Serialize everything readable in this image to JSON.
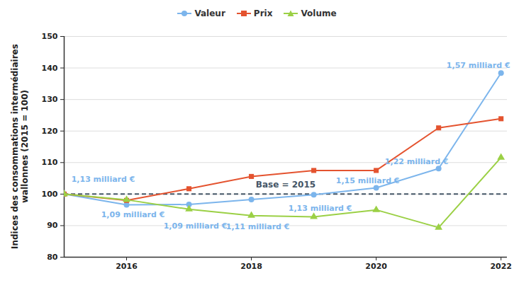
{
  "chart_data": {
    "type": "line",
    "x": [
      2015,
      2016,
      2017,
      2018,
      2019,
      2020,
      2021,
      2022
    ],
    "xlim": [
      2015,
      2022.1
    ],
    "xticks": [
      2016,
      2018,
      2020,
      2022
    ],
    "ylim": [
      80,
      150
    ],
    "yticks": [
      80,
      90,
      100,
      110,
      120,
      130,
      140,
      150
    ],
    "y_label": "Indices des consommations intermédiaires wallonnes (2015 = 100)",
    "grid": true,
    "legend": "top",
    "series": [
      {
        "name": "Valeur",
        "color": "#7cb5ec",
        "marker": "circle",
        "values": [
          100,
          96.6,
          96.7,
          98.3,
          99.8,
          102.0,
          108.1,
          138.4
        ]
      },
      {
        "name": "Prix",
        "color": "#e4532f",
        "marker": "square",
        "values": [
          100,
          98.0,
          101.7,
          105.6,
          107.5,
          107.5,
          121.0,
          123.9
        ]
      },
      {
        "name": "Volume",
        "color": "#9bd045",
        "marker": "triangle",
        "values": [
          100,
          98.2,
          95.2,
          93.2,
          92.8,
          95.0,
          89.4,
          111.6
        ]
      }
    ],
    "reference": {
      "value": 100,
      "label": "Base = 2015",
      "line_style": "dashed"
    },
    "annotations": [
      {
        "x": 2015,
        "text": "1,13 milliard €"
      },
      {
        "x": 2016,
        "text": "1,09 milliard €"
      },
      {
        "x": 2017,
        "text": "1,09 milliard €"
      },
      {
        "x": 2018,
        "text": "1,11 milliard €"
      },
      {
        "x": 2019,
        "text": "1,13 milliard €"
      },
      {
        "x": 2020,
        "text": "1,15 milliard €"
      },
      {
        "x": 2021,
        "text": "1,22 milliard €"
      },
      {
        "x": 2022,
        "text": "1,57 milliard €"
      }
    ]
  }
}
